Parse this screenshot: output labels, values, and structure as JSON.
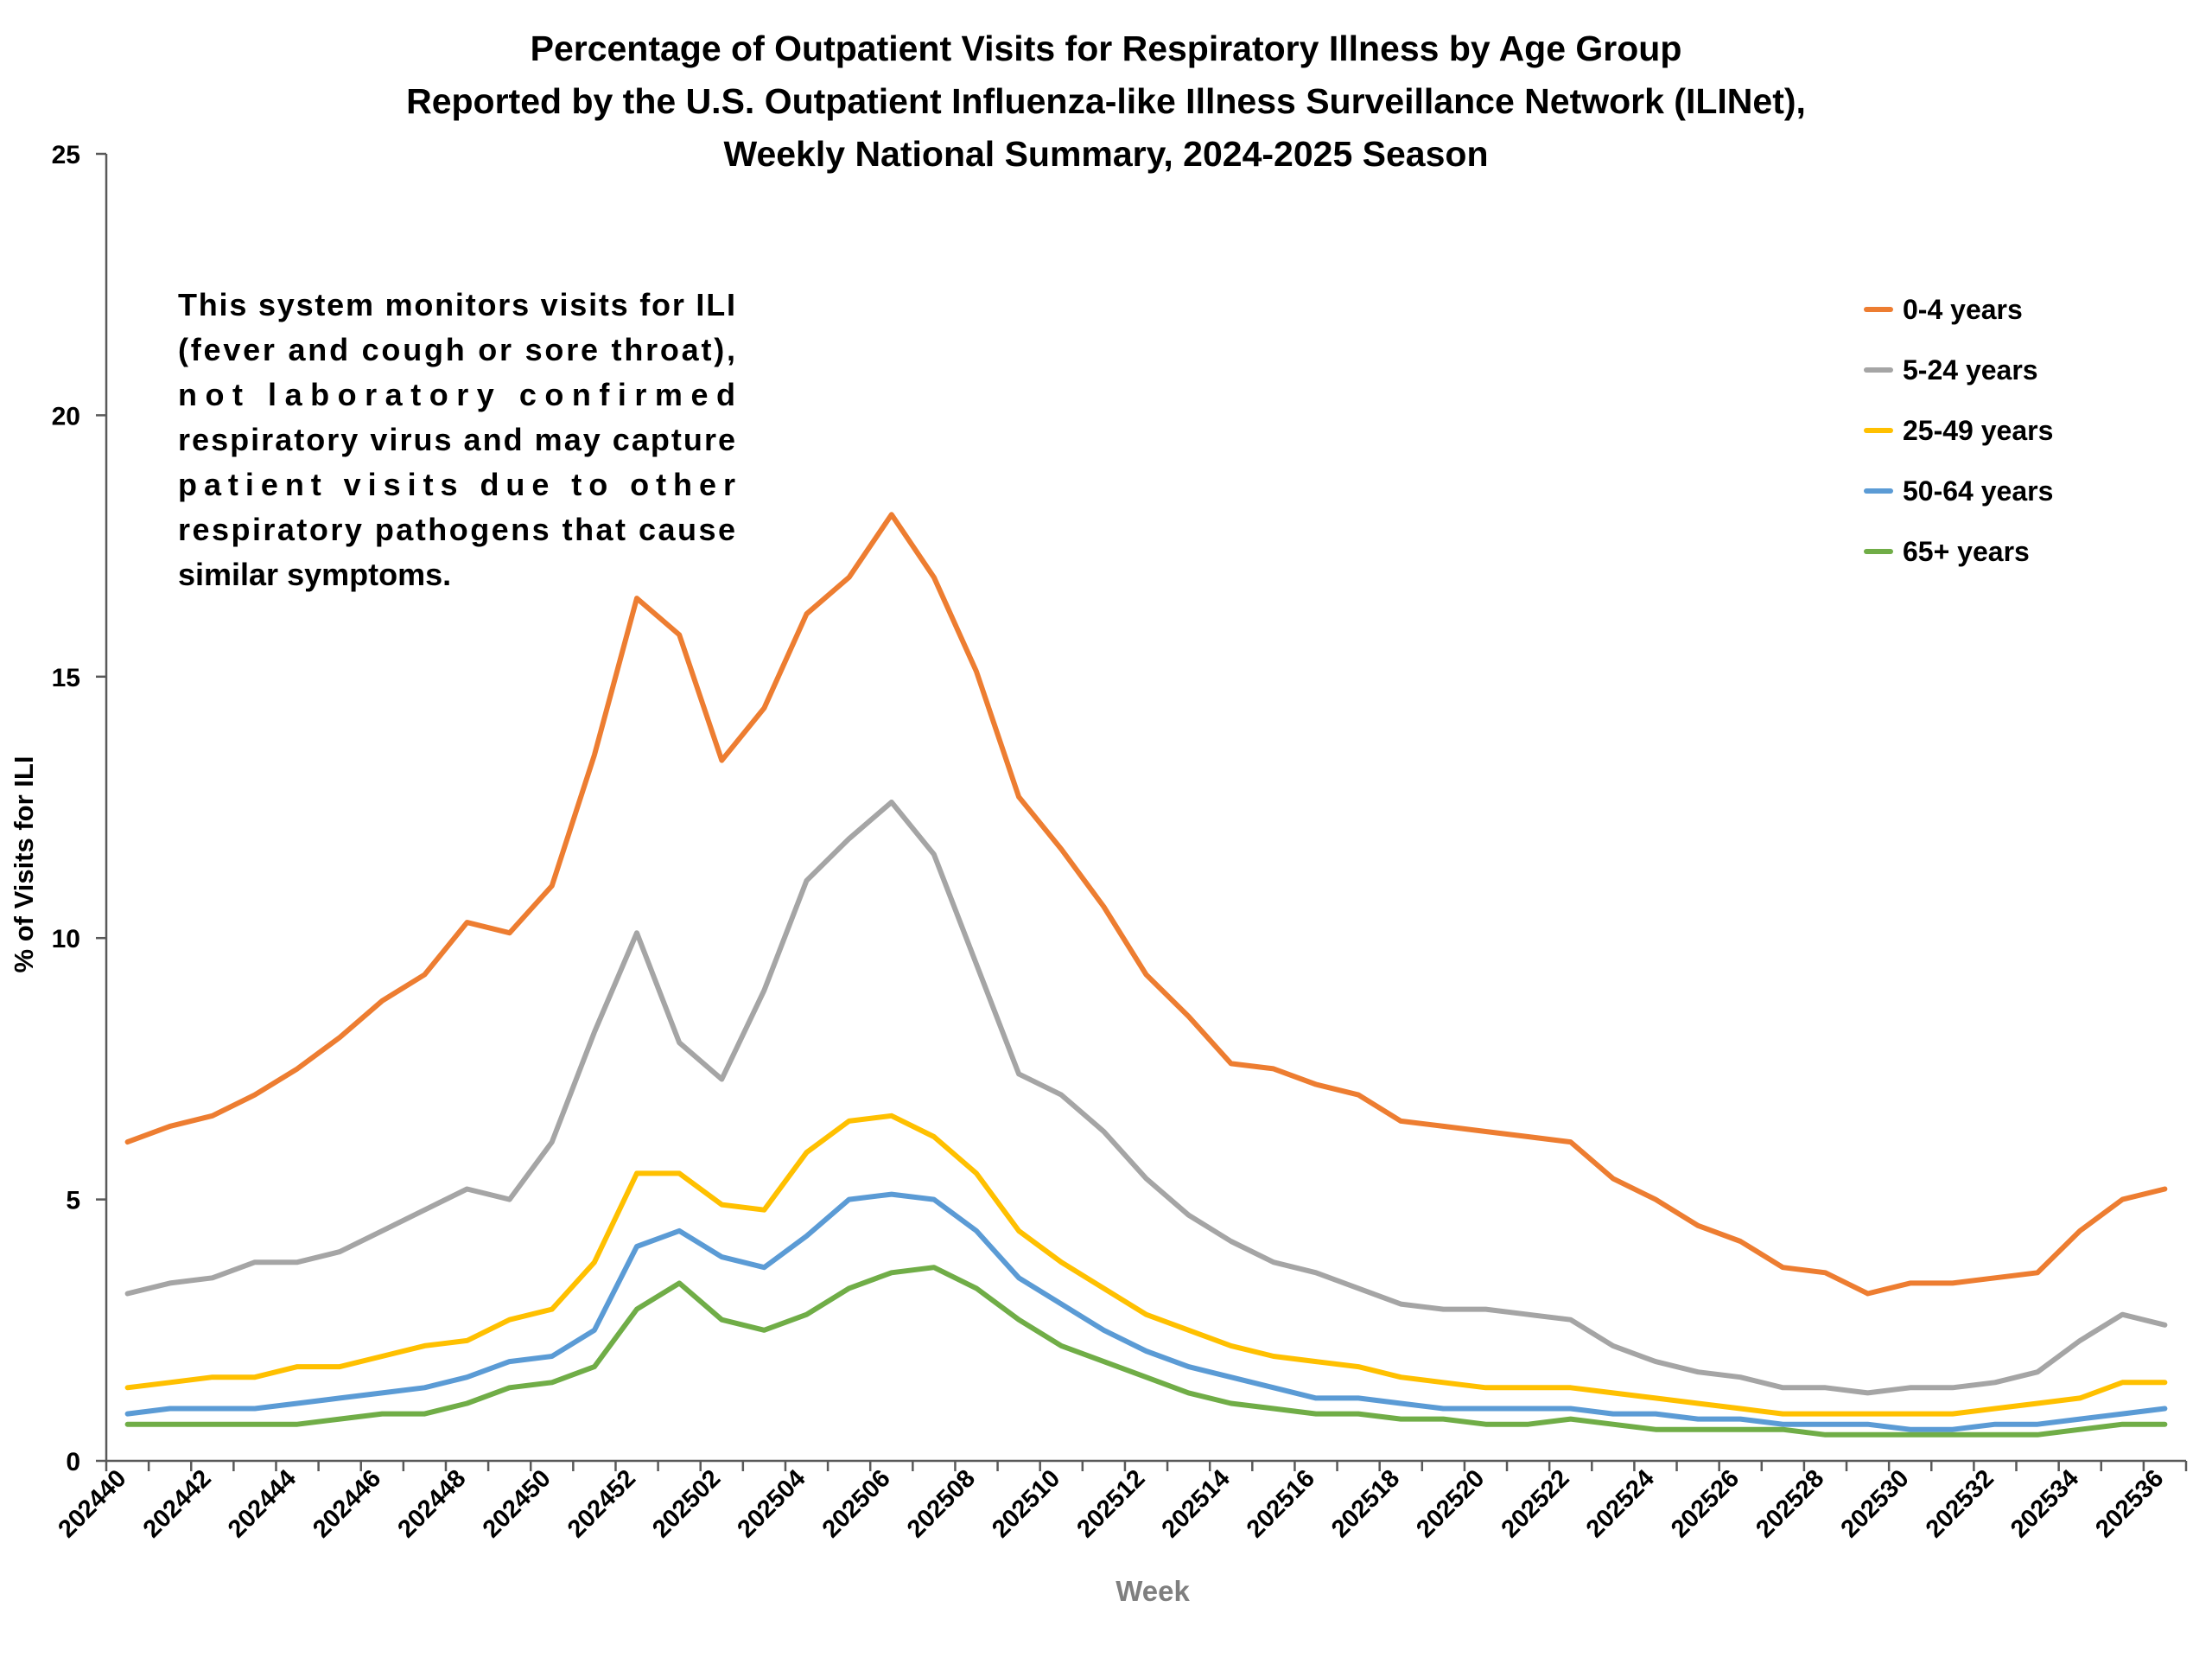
{
  "chart_data": {
    "type": "line",
    "title": [
      "Percentage of Outpatient Visits for Respiratory Illness by Age Group",
      "Reported by the U.S. Outpatient Influenza-like Illness Surveillance Network (ILINet),",
      "Weekly National Summary, 2024-2025 Season"
    ],
    "xlabel": "Week",
    "ylabel": "% of Visits for ILI",
    "ylim": [
      0,
      25
    ],
    "yticks": [
      "0",
      "5",
      "10",
      "15",
      "20",
      "25"
    ],
    "grid": false,
    "legend_position": "top-right",
    "categories": [
      "202440",
      "202441",
      "202442",
      "202443",
      "202444",
      "202445",
      "202446",
      "202447",
      "202448",
      "202449",
      "202450",
      "202451",
      "202452",
      "202501",
      "202502",
      "202503",
      "202504",
      "202505",
      "202506",
      "202507",
      "202508",
      "202509",
      "202510",
      "202511",
      "202512",
      "202513",
      "202514",
      "202515",
      "202516",
      "202517",
      "202518",
      "202519",
      "202520",
      "202521",
      "202522",
      "202523",
      "202524",
      "202525",
      "202526",
      "202527",
      "202528",
      "202529",
      "202530",
      "202531",
      "202532",
      "202533",
      "202534",
      "202535",
      "202536"
    ],
    "xticks": [
      "202440",
      "202442",
      "202444",
      "202446",
      "202448",
      "202450",
      "202452",
      "202502",
      "202504",
      "202506",
      "202508",
      "202510",
      "202512",
      "202514",
      "202516",
      "202518",
      "202520",
      "202522",
      "202524",
      "202526",
      "202528",
      "202530",
      "202532",
      "202534",
      "202536"
    ],
    "series": [
      {
        "name": "0-4 years",
        "color": "#ED7D31",
        "values": [
          6.1,
          6.4,
          6.6,
          7.0,
          7.5,
          8.1,
          8.8,
          9.3,
          10.3,
          10.1,
          11.0,
          13.5,
          16.5,
          15.8,
          13.4,
          14.4,
          16.2,
          16.9,
          18.1,
          16.9,
          15.1,
          12.7,
          11.7,
          10.6,
          9.3,
          8.5,
          7.6,
          7.5,
          7.2,
          7.0,
          6.5,
          6.4,
          6.3,
          6.2,
          6.1,
          5.4,
          5.0,
          4.5,
          4.2,
          3.7,
          3.6,
          3.2,
          3.4,
          3.4,
          3.5,
          3.6,
          4.4,
          5.0,
          5.2
        ]
      },
      {
        "name": "5-24 years",
        "color": "#A5A5A5",
        "values": [
          3.2,
          3.4,
          3.5,
          3.8,
          3.8,
          4.0,
          4.4,
          4.8,
          5.2,
          5.0,
          6.1,
          8.2,
          10.1,
          8.0,
          7.3,
          9.0,
          11.1,
          11.9,
          12.6,
          11.6,
          9.5,
          7.4,
          7.0,
          6.3,
          5.4,
          4.7,
          4.2,
          3.8,
          3.6,
          3.3,
          3.0,
          2.9,
          2.9,
          2.8,
          2.7,
          2.2,
          1.9,
          1.7,
          1.6,
          1.4,
          1.4,
          1.3,
          1.4,
          1.4,
          1.5,
          1.7,
          2.3,
          2.8,
          2.6
        ]
      },
      {
        "name": "25-49 years",
        "color": "#FFC000",
        "values": [
          1.4,
          1.5,
          1.6,
          1.6,
          1.8,
          1.8,
          2.0,
          2.2,
          2.3,
          2.7,
          2.9,
          3.8,
          5.5,
          5.5,
          4.9,
          4.8,
          5.9,
          6.5,
          6.6,
          6.2,
          5.5,
          4.4,
          3.8,
          3.3,
          2.8,
          2.5,
          2.2,
          2.0,
          1.9,
          1.8,
          1.6,
          1.5,
          1.4,
          1.4,
          1.4,
          1.3,
          1.2,
          1.1,
          1.0,
          0.9,
          0.9,
          0.9,
          0.9,
          0.9,
          1.0,
          1.1,
          1.2,
          1.5,
          1.5
        ]
      },
      {
        "name": "50-64 years",
        "color": "#5B9BD5",
        "values": [
          0.9,
          1.0,
          1.0,
          1.0,
          1.1,
          1.2,
          1.3,
          1.4,
          1.6,
          1.9,
          2.0,
          2.5,
          4.1,
          4.4,
          3.9,
          3.7,
          4.3,
          5.0,
          5.1,
          5.0,
          4.4,
          3.5,
          3.0,
          2.5,
          2.1,
          1.8,
          1.6,
          1.4,
          1.2,
          1.2,
          1.1,
          1.0,
          1.0,
          1.0,
          1.0,
          0.9,
          0.9,
          0.8,
          0.8,
          0.7,
          0.7,
          0.7,
          0.6,
          0.6,
          0.7,
          0.7,
          0.8,
          0.9,
          1.0
        ]
      },
      {
        "name": "65+ years",
        "color": "#70AD47",
        "values": [
          0.7,
          0.7,
          0.7,
          0.7,
          0.7,
          0.8,
          0.9,
          0.9,
          1.1,
          1.4,
          1.5,
          1.8,
          2.9,
          3.4,
          2.7,
          2.5,
          2.8,
          3.3,
          3.6,
          3.7,
          3.3,
          2.7,
          2.2,
          1.9,
          1.6,
          1.3,
          1.1,
          1.0,
          0.9,
          0.9,
          0.8,
          0.8,
          0.7,
          0.7,
          0.8,
          0.7,
          0.6,
          0.6,
          0.6,
          0.6,
          0.5,
          0.5,
          0.5,
          0.5,
          0.5,
          0.5,
          0.6,
          0.7,
          0.7
        ]
      }
    ],
    "annotation": [
      "This system monitors visits for ILI",
      "(fever and cough or sore throat),",
      "not laboratory confirmed",
      "respiratory virus and may capture",
      "patient visits due to other",
      "respiratory pathogens that cause",
      "similar symptoms."
    ]
  }
}
